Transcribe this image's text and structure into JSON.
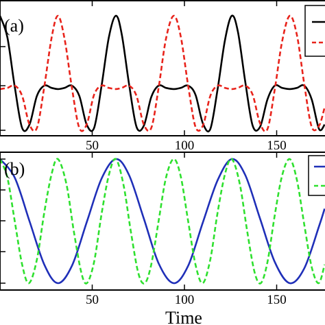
{
  "chart_data": [
    {
      "type": "line",
      "panel_label": "(a)",
      "xlabel": "",
      "xlim": [
        0,
        176
      ],
      "xticks": [
        50,
        100,
        150
      ],
      "ylim": [
        -0.05,
        1.05
      ],
      "grid": false,
      "legend": {
        "placement": "top-right",
        "clipped": true
      },
      "series": [
        {
          "color": "#000000",
          "style": "solid",
          "x": [
            0,
            4,
            8,
            12,
            16,
            20,
            24,
            28,
            31.4,
            35,
            39,
            43,
            47,
            51,
            55,
            59,
            62.8,
            66,
            70,
            74,
            78,
            82,
            86,
            90,
            94.2,
            98,
            102,
            106,
            110,
            114,
            118,
            122,
            125.7,
            129,
            133,
            137,
            141,
            145,
            149,
            153,
            157.1,
            161,
            165,
            169,
            173,
            176
          ],
          "y": [
            1.0,
            0.81,
            0.38,
            0.02,
            0.05,
            0.3,
            0.39,
            0.37,
            0.36,
            0.37,
            0.39,
            0.3,
            0.05,
            0.02,
            0.38,
            0.81,
            1.0,
            0.84,
            0.4,
            0.03,
            0.04,
            0.29,
            0.39,
            0.37,
            0.36,
            0.37,
            0.39,
            0.31,
            0.06,
            0.01,
            0.36,
            0.79,
            1.0,
            0.86,
            0.42,
            0.04,
            0.03,
            0.27,
            0.39,
            0.37,
            0.36,
            0.37,
            0.39,
            0.27,
            0.01,
            0.05
          ]
        },
        {
          "color": "#e8231b",
          "style": "dashed",
          "x": [
            0,
            4,
            8,
            12,
            16,
            20,
            24,
            28,
            31.4,
            35,
            39,
            43,
            47,
            51,
            55,
            59,
            62.8,
            66,
            70,
            74,
            78,
            82,
            86,
            90,
            94.2,
            98,
            102,
            106,
            110,
            114,
            118,
            122,
            125.7,
            129,
            133,
            137,
            141,
            145,
            149,
            153,
            157.1,
            161,
            165,
            169,
            173,
            176
          ],
          "y": [
            0.36,
            0.37,
            0.39,
            0.3,
            0.05,
            0.02,
            0.38,
            0.81,
            1.0,
            0.8,
            0.37,
            0.02,
            0.05,
            0.31,
            0.39,
            0.37,
            0.36,
            0.37,
            0.39,
            0.3,
            0.05,
            0.02,
            0.37,
            0.8,
            1.0,
            0.82,
            0.39,
            0.03,
            0.04,
            0.3,
            0.39,
            0.37,
            0.36,
            0.37,
            0.39,
            0.31,
            0.06,
            0.01,
            0.36,
            0.78,
            1.0,
            0.83,
            0.4,
            0.03,
            0.04,
            0.2
          ]
        }
      ]
    },
    {
      "type": "line",
      "panel_label": "(b)",
      "xlabel": "Time",
      "xlim": [
        0,
        176
      ],
      "xticks": [
        50,
        100,
        150
      ],
      "ylim": [
        -0.05,
        1.05
      ],
      "grid": false,
      "legend": {
        "placement": "top-right",
        "clipped": true
      },
      "series": [
        {
          "color": "#1f2fb8",
          "style": "solid",
          "x": [
            0,
            8,
            16,
            24,
            31.4,
            39,
            47,
            55,
            62.8,
            70,
            78,
            86,
            94.2,
            102,
            110,
            118,
            125.7,
            133,
            141,
            149,
            157.1,
            165,
            173,
            176
          ],
          "y": [
            1.0,
            0.85,
            0.5,
            0.15,
            0.0,
            0.14,
            0.49,
            0.84,
            1.0,
            0.87,
            0.52,
            0.16,
            0.0,
            0.14,
            0.49,
            0.83,
            1.0,
            0.87,
            0.52,
            0.17,
            0.0,
            0.12,
            0.46,
            0.6
          ]
        },
        {
          "color": "#2ee02e",
          "style": "dashed",
          "x": [
            0,
            4,
            8,
            12,
            15.7,
            20,
            24,
            28,
            31.4,
            36,
            40,
            44,
            47.1,
            51,
            55,
            59,
            62.8,
            67,
            71,
            75,
            78.5,
            82,
            86,
            90,
            94.2,
            98,
            102,
            106,
            109.9,
            114,
            118,
            122,
            125.7,
            130,
            134,
            138,
            141.4,
            145,
            149,
            153,
            157.1,
            161,
            165,
            169,
            172.8,
            176
          ],
          "y": [
            1.0,
            0.85,
            0.5,
            0.15,
            0.0,
            0.19,
            0.57,
            0.88,
            1.0,
            0.8,
            0.42,
            0.09,
            0.0,
            0.17,
            0.55,
            0.87,
            1.0,
            0.79,
            0.41,
            0.08,
            0.0,
            0.15,
            0.5,
            0.85,
            1.0,
            0.86,
            0.5,
            0.15,
            0.0,
            0.19,
            0.57,
            0.88,
            1.0,
            0.8,
            0.42,
            0.09,
            0.0,
            0.17,
            0.55,
            0.87,
            1.0,
            0.83,
            0.47,
            0.13,
            0.0,
            0.15
          ]
        }
      ]
    }
  ]
}
